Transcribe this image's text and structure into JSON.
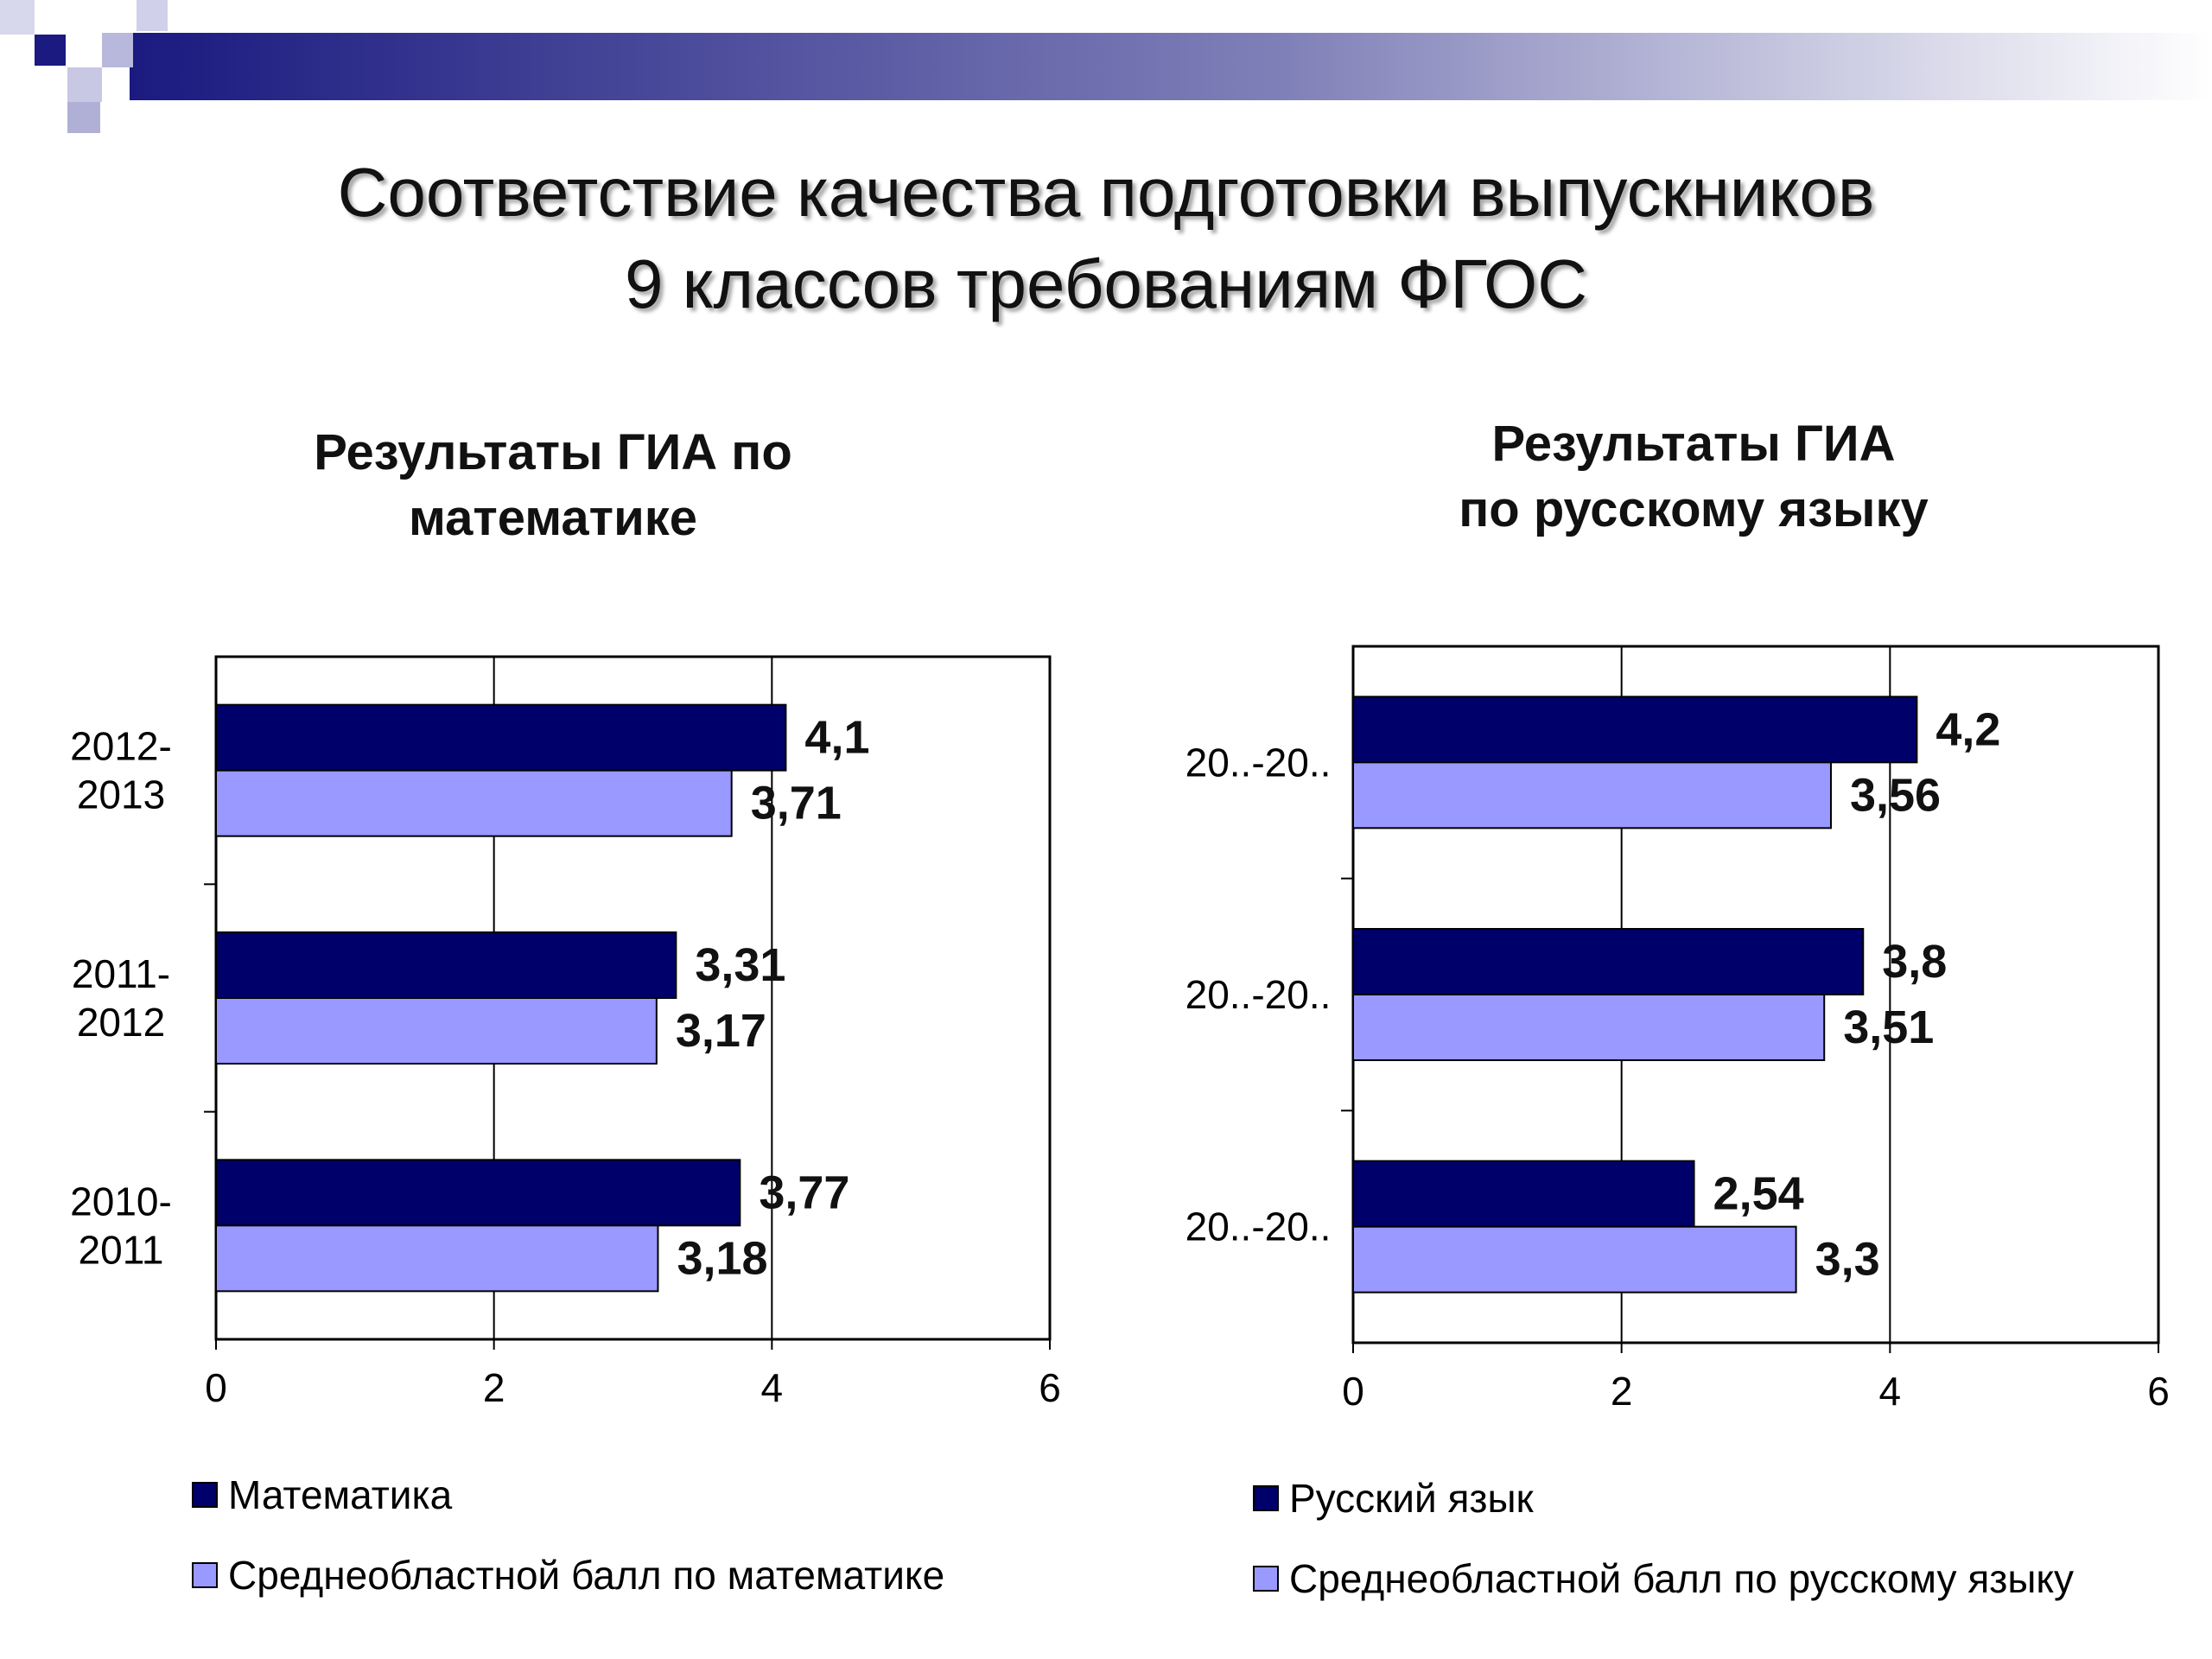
{
  "slide": {
    "title_line1": "Соответствие качества подготовки выпускников",
    "title_line2": "9 классов требованиям ФГОС"
  },
  "colors": {
    "dark_series": "#00006b",
    "light_series": "#9999ff",
    "header_gradient_start": "#1a1a80",
    "header_gradient_end": "#ffffff"
  },
  "chart_data": [
    {
      "type": "bar",
      "orientation": "horizontal",
      "title_line1": "Результаты ГИА по",
      "title_line2": "математике",
      "categories": [
        [
          "2012-",
          "2013"
        ],
        [
          "2011-",
          "2012"
        ],
        [
          "2010-",
          "2011"
        ]
      ],
      "series": [
        {
          "name": "Математика",
          "values": [
            4.1,
            3.31,
            3.77
          ],
          "labels": [
            "4,1",
            "3,31",
            "3,77"
          ],
          "color": "#00006b"
        },
        {
          "name": "Среднеобластной балл по математике",
          "values": [
            3.71,
            3.17,
            3.18
          ],
          "labels": [
            "3,71",
            "3,17",
            "3,18"
          ],
          "color": "#9999ff"
        }
      ],
      "xlim": [
        0,
        6
      ],
      "xticks": [
        "0",
        "2",
        "4",
        "6"
      ],
      "grid": "vertical",
      "legend": "bottom"
    },
    {
      "type": "bar",
      "orientation": "horizontal",
      "title_line1": "Результаты ГИА",
      "title_line2": "по русскому языку",
      "categories": [
        [
          "20..-20.."
        ],
        [
          "20..-20.."
        ],
        [
          "20..-20.."
        ]
      ],
      "series": [
        {
          "name": "Русский язык",
          "values": [
            4.2,
            3.8,
            2.54
          ],
          "labels": [
            "4,2",
            "3,8",
            "2,54"
          ],
          "color": "#00006b"
        },
        {
          "name": "Среднеобластной балл по русскому языку",
          "values": [
            3.56,
            3.51,
            3.3
          ],
          "labels": [
            "3,56",
            "3,51",
            "3,3"
          ],
          "color": "#9999ff"
        }
      ],
      "xlim": [
        0,
        6
      ],
      "xticks": [
        "0",
        "2",
        "4",
        "6"
      ],
      "grid": "vertical",
      "legend": "bottom"
    }
  ]
}
